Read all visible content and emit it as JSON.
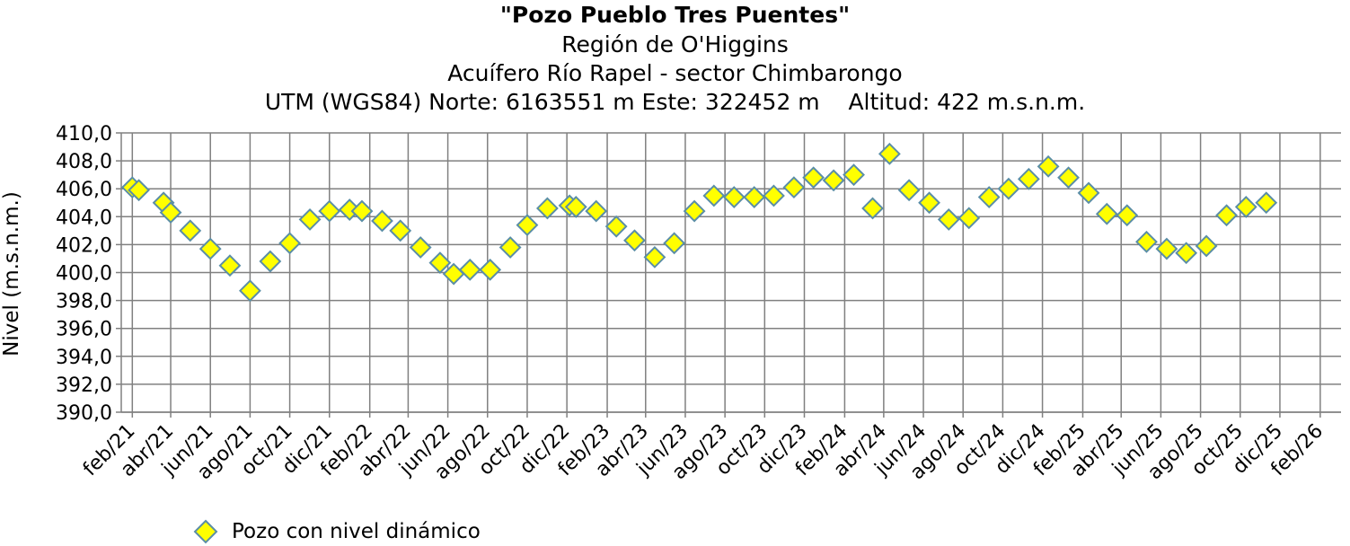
{
  "chart_data": {
    "type": "scatter",
    "title": "\"Pozo Pueblo Tres Puentes\"",
    "subtitles": [
      "Región de O'Higgins",
      "Acuífero Río Rapel - sector Chimbarongo",
      "UTM (WGS84) Norte: 6163551 m Este: 322452 m    Altitud: 422 m.s.n.m."
    ],
    "ylabel": "Nivel (m.s.n.m.)",
    "xlabel": "",
    "ylim": [
      390,
      410
    ],
    "yticks": [
      "390,0",
      "392,0",
      "394,0",
      "396,0",
      "398,0",
      "400,0",
      "402,0",
      "404,0",
      "406,0",
      "408,0",
      "410,0"
    ],
    "xticks": [
      "feb/21",
      "abr/21",
      "jun/21",
      "ago/21",
      "oct/21",
      "dic/21",
      "feb/22",
      "abr/22",
      "jun/22",
      "ago/22",
      "oct/22",
      "dic/22",
      "feb/23",
      "abr/23",
      "jun/23",
      "ago/23",
      "oct/23",
      "dic/23",
      "feb/24",
      "abr/24",
      "jun/24",
      "ago/24",
      "oct/24",
      "dic/24",
      "feb/25",
      "abr/25",
      "jun/25",
      "ago/25",
      "oct/25",
      "dic/25",
      "feb/26"
    ],
    "grid": true,
    "legend_position": "bottom-left",
    "series": [
      {
        "name": "Pozo con nivel dinámico",
        "marker": "diamond",
        "fill": "#ffff00",
        "stroke": "#5b8ea6",
        "points": [
          {
            "x": "2021-02-01",
            "y": 406.1
          },
          {
            "x": "2021-02-11",
            "y": 405.9
          },
          {
            "x": "2021-03-21",
            "y": 405.0
          },
          {
            "x": "2021-04-01",
            "y": 404.3
          },
          {
            "x": "2021-05-01",
            "y": 403.0
          },
          {
            "x": "2021-06-01",
            "y": 401.7
          },
          {
            "x": "2021-07-01",
            "y": 400.5
          },
          {
            "x": "2021-08-01",
            "y": 398.7
          },
          {
            "x": "2021-09-01",
            "y": 400.8
          },
          {
            "x": "2021-10-01",
            "y": 402.1
          },
          {
            "x": "2021-11-01",
            "y": 403.8
          },
          {
            "x": "2021-12-01",
            "y": 404.4
          },
          {
            "x": "2022-01-01",
            "y": 404.5
          },
          {
            "x": "2022-01-20",
            "y": 404.4
          },
          {
            "x": "2022-02-20",
            "y": 403.7
          },
          {
            "x": "2022-03-20",
            "y": 403.0
          },
          {
            "x": "2022-04-20",
            "y": 401.8
          },
          {
            "x": "2022-05-20",
            "y": 400.7
          },
          {
            "x": "2022-06-10",
            "y": 399.9
          },
          {
            "x": "2022-07-05",
            "y": 400.2
          },
          {
            "x": "2022-08-05",
            "y": 400.2
          },
          {
            "x": "2022-09-05",
            "y": 401.8
          },
          {
            "x": "2022-10-01",
            "y": 403.4
          },
          {
            "x": "2022-11-01",
            "y": 404.6
          },
          {
            "x": "2022-12-05",
            "y": 404.8
          },
          {
            "x": "2022-12-15",
            "y": 404.7
          },
          {
            "x": "2023-01-15",
            "y": 404.4
          },
          {
            "x": "2023-02-15",
            "y": 403.3
          },
          {
            "x": "2023-03-15",
            "y": 402.3
          },
          {
            "x": "2023-04-15",
            "y": 401.1
          },
          {
            "x": "2023-05-15",
            "y": 402.1
          },
          {
            "x": "2023-06-15",
            "y": 404.4
          },
          {
            "x": "2023-07-15",
            "y": 405.5
          },
          {
            "x": "2023-08-15",
            "y": 405.4
          },
          {
            "x": "2023-09-15",
            "y": 405.4
          },
          {
            "x": "2023-10-15",
            "y": 405.5
          },
          {
            "x": "2023-11-15",
            "y": 406.1
          },
          {
            "x": "2023-12-15",
            "y": 406.8
          },
          {
            "x": "2024-01-15",
            "y": 406.6
          },
          {
            "x": "2024-02-15",
            "y": 407.0
          },
          {
            "x": "2024-03-15",
            "y": 404.6
          },
          {
            "x": "2024-04-10",
            "y": 408.5
          },
          {
            "x": "2024-05-10",
            "y": 405.9
          },
          {
            "x": "2024-06-10",
            "y": 405.0
          },
          {
            "x": "2024-07-10",
            "y": 403.8
          },
          {
            "x": "2024-08-10",
            "y": 403.9
          },
          {
            "x": "2024-09-10",
            "y": 405.4
          },
          {
            "x": "2024-10-10",
            "y": 406.0
          },
          {
            "x": "2024-11-10",
            "y": 406.7
          },
          {
            "x": "2024-12-10",
            "y": 407.6
          },
          {
            "x": "2025-01-10",
            "y": 406.8
          },
          {
            "x": "2025-02-10",
            "y": 405.7
          },
          {
            "x": "2025-03-10",
            "y": 404.2
          },
          {
            "x": "2025-04-10",
            "y": 404.1
          },
          {
            "x": "2025-05-10",
            "y": 402.2
          },
          {
            "x": "2025-06-10",
            "y": 401.7
          },
          {
            "x": "2025-07-10",
            "y": 401.4
          },
          {
            "x": "2025-08-10",
            "y": 401.9
          },
          {
            "x": "2025-09-10",
            "y": 404.1
          },
          {
            "x": "2025-10-10",
            "y": 404.7
          },
          {
            "x": "2025-11-10",
            "y": 405.0
          }
        ]
      }
    ]
  }
}
